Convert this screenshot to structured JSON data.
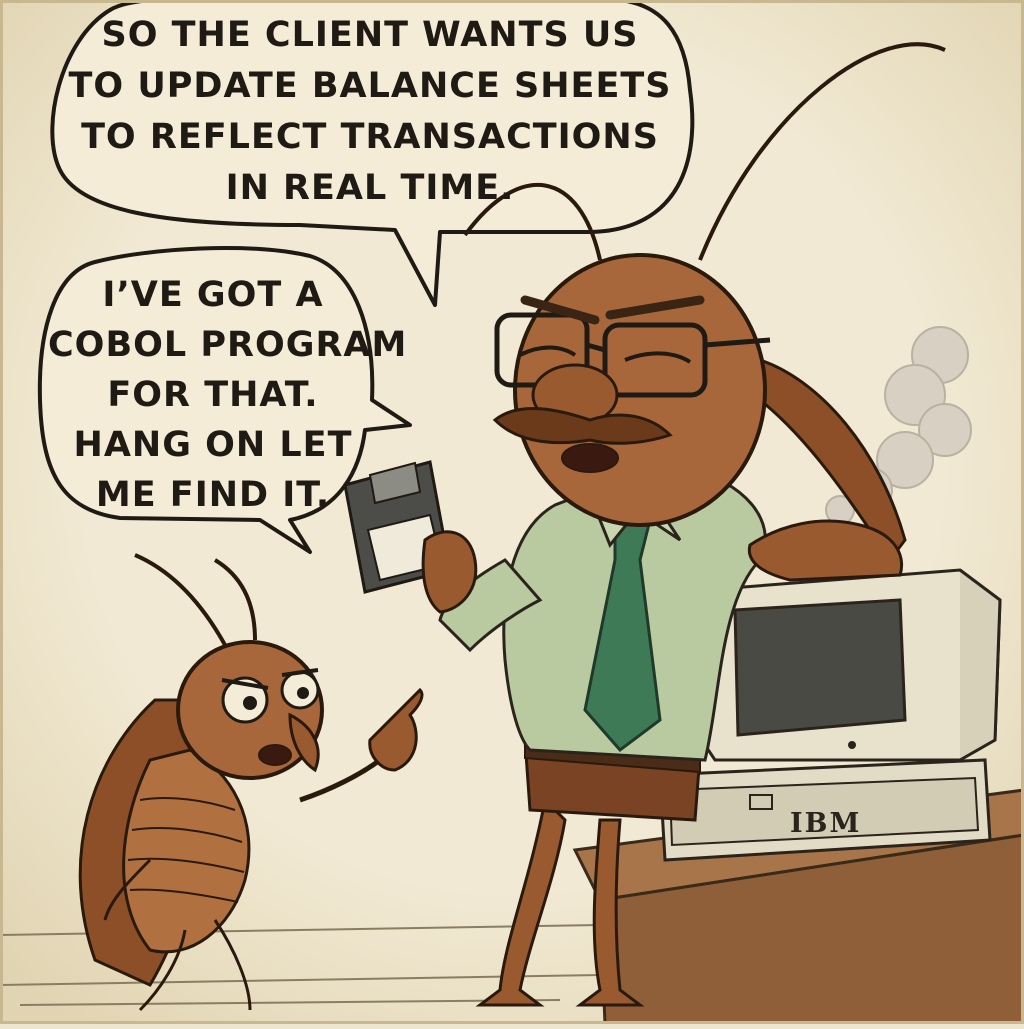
{
  "bubbles": {
    "top": {
      "lines": [
        "SO THE CLIENT WANTS US",
        "TO UPDATE BALANCE SHEETS",
        "TO REFLECT TRANSACTIONS",
        "IN REAL TIME."
      ]
    },
    "left": {
      "lines": [
        "I’VE GOT A",
        "COBOL PROGRAM",
        "FOR THAT.",
        "HANG ON LET",
        "ME FIND IT."
      ]
    }
  },
  "computer": {
    "brand": "IBM"
  },
  "colors": {
    "background": "#efe6cf",
    "ink": "#1f1a14",
    "roach_body": "#a8673a",
    "shirt": "#b9c9a0",
    "tie": "#3f7a57",
    "computer": "#ddd6c0",
    "desk": "#9b6a3e"
  }
}
